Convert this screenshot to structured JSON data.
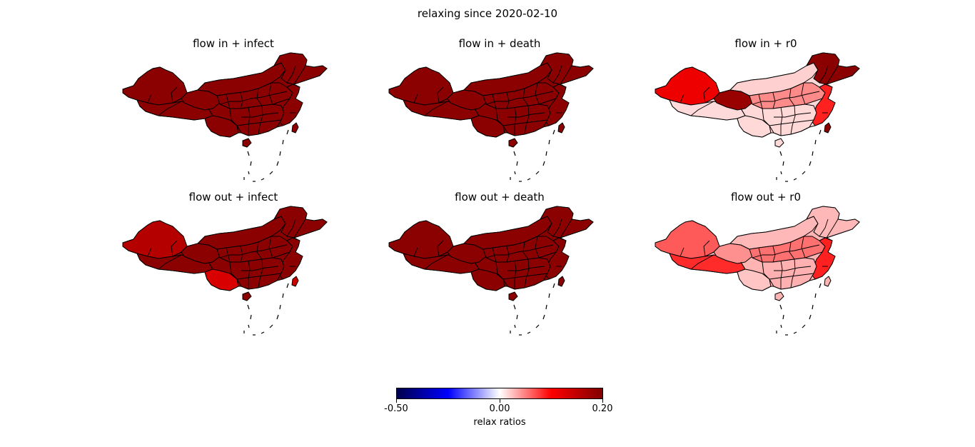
{
  "title": "relaxing since 2020-02-10",
  "panels": [
    {
      "title": "flow in + infect",
      "colors": {
        "base": "#8b0000",
        "xinjiang": "#8b0000",
        "tibet": "#8b0000",
        "qinghai": "#8b0000",
        "inner_mongolia": "#8b0000",
        "northeast": "#8b0000",
        "central": "#8b0000",
        "south": "#8b0000",
        "east": "#8b0000",
        "taiwan": "#8b0000",
        "yunnan": "#8b0000"
      }
    },
    {
      "title": "flow in + death",
      "colors": {
        "base": "#8b0000",
        "xinjiang": "#8b0000",
        "tibet": "#8b0000",
        "qinghai": "#8b0000",
        "inner_mongolia": "#8b0000",
        "northeast": "#8b0000",
        "central": "#8b0000",
        "south": "#8b0000",
        "east": "#8b0000",
        "taiwan": "#8b0000",
        "yunnan": "#8b0000"
      }
    },
    {
      "title": "flow in + r0",
      "colors": {
        "base": "#ffd8d8",
        "xinjiang": "#ee0000",
        "tibet": "#ffdada",
        "qinghai": "#990000",
        "inner_mongolia": "#ffd0d0",
        "northeast": "#8b0000",
        "central": "#ff8a8a",
        "south": "#ffd8d8",
        "east": "#ff2020",
        "taiwan": "#8b0000",
        "yunnan": "#ffd8d8"
      }
    },
    {
      "title": "flow out + infect",
      "colors": {
        "base": "#8b0000",
        "xinjiang": "#b50000",
        "tibet": "#8b0000",
        "qinghai": "#8b0000",
        "inner_mongolia": "#8b0000",
        "northeast": "#8b0000",
        "central": "#8b0000",
        "south": "#8b0000",
        "east": "#8b0000",
        "taiwan": "#cc0000",
        "yunnan": "#d80000"
      }
    },
    {
      "title": "flow out + death",
      "colors": {
        "base": "#8b0000",
        "xinjiang": "#8b0000",
        "tibet": "#8b0000",
        "qinghai": "#8b0000",
        "inner_mongolia": "#8b0000",
        "northeast": "#8b0000",
        "central": "#8b0000",
        "south": "#8b0000",
        "east": "#8b0000",
        "taiwan": "#8b0000",
        "yunnan": "#8b0000"
      }
    },
    {
      "title": "flow out + r0",
      "colors": {
        "base": "#ffb4b4",
        "xinjiang": "#ff5a5a",
        "tibet": "#ff2a2a",
        "qinghai": "#ff9090",
        "inner_mongolia": "#ffb8b8",
        "northeast": "#ffb8b8",
        "central": "#ff7070",
        "south": "#ffb0b0",
        "east": "#ff2020",
        "taiwan": "#ffb4b4",
        "yunnan": "#ffc4c4"
      }
    }
  ],
  "colorbar": {
    "label": "relax ratios",
    "ticks": [
      {
        "label": "-0.50",
        "value": -0.5
      },
      {
        "label": "0.00",
        "value": 0.0
      },
      {
        "label": "0.20",
        "value": 0.2
      }
    ],
    "min": -0.5,
    "max": 0.2,
    "colors": [
      "#00004c",
      "#0000ff",
      "#ffffff",
      "#ff0000",
      "#800000"
    ]
  }
}
